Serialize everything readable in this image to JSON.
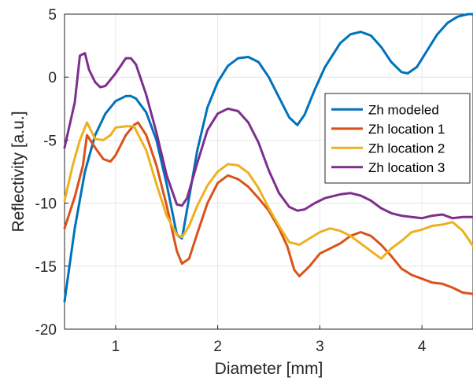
{
  "chart_data": {
    "type": "line",
    "xlabel": "Diameter [mm]",
    "ylabel": "Reflectivity [a.u.]",
    "xlim": [
      0.5,
      4.5
    ],
    "ylim": [
      -20,
      5
    ],
    "xticks": [
      1,
      2,
      3,
      4
    ],
    "yticks": [
      5,
      0,
      -5,
      -10,
      -15,
      -20
    ],
    "grid": true,
    "legend_position": "right",
    "series": [
      {
        "name": "Zh modeled",
        "color": "#0072BD",
        "x": [
          0.5,
          0.6,
          0.7,
          0.8,
          0.9,
          1.0,
          1.1,
          1.15,
          1.2,
          1.3,
          1.4,
          1.5,
          1.6,
          1.65,
          1.7,
          1.8,
          1.9,
          2.0,
          2.1,
          2.2,
          2.3,
          2.4,
          2.5,
          2.6,
          2.7,
          2.78,
          2.85,
          2.95,
          3.05,
          3.2,
          3.3,
          3.4,
          3.5,
          3.6,
          3.7,
          3.8,
          3.86,
          3.95,
          4.05,
          4.15,
          4.25,
          4.35,
          4.45,
          4.5
        ],
        "y": [
          -17.8,
          -12.0,
          -7.5,
          -4.6,
          -2.9,
          -1.9,
          -1.5,
          -1.5,
          -1.7,
          -2.8,
          -5.0,
          -8.5,
          -12.5,
          -12.8,
          -10.5,
          -5.8,
          -2.4,
          -0.4,
          0.9,
          1.5,
          1.6,
          1.2,
          0.0,
          -1.6,
          -3.2,
          -3.8,
          -3.0,
          -1.0,
          0.8,
          2.7,
          3.4,
          3.6,
          3.3,
          2.4,
          1.2,
          0.4,
          0.3,
          0.8,
          2.1,
          3.4,
          4.3,
          4.8,
          5.0,
          5.0
        ]
      },
      {
        "name": "Zh location 1",
        "color": "#D95319",
        "x": [
          0.5,
          0.6,
          0.68,
          0.72,
          0.8,
          0.88,
          0.95,
          1.0,
          1.1,
          1.18,
          1.22,
          1.3,
          1.4,
          1.5,
          1.6,
          1.65,
          1.72,
          1.8,
          1.9,
          2.0,
          2.1,
          2.2,
          2.3,
          2.4,
          2.5,
          2.6,
          2.68,
          2.75,
          2.8,
          2.9,
          3.0,
          3.1,
          3.2,
          3.3,
          3.4,
          3.5,
          3.6,
          3.7,
          3.8,
          3.9,
          4.0,
          4.1,
          4.2,
          4.3,
          4.4,
          4.5
        ],
        "y": [
          -12.0,
          -9.5,
          -7.0,
          -4.6,
          -5.6,
          -6.5,
          -6.7,
          -6.2,
          -4.6,
          -3.8,
          -3.6,
          -4.6,
          -7.0,
          -10.2,
          -13.8,
          -14.8,
          -14.4,
          -12.4,
          -10.0,
          -8.4,
          -7.8,
          -8.1,
          -8.7,
          -9.6,
          -10.6,
          -12.0,
          -13.4,
          -15.3,
          -15.8,
          -15.0,
          -14.0,
          -13.6,
          -13.2,
          -12.6,
          -12.3,
          -12.6,
          -13.3,
          -14.2,
          -15.2,
          -15.7,
          -16.0,
          -16.3,
          -16.4,
          -16.7,
          -17.1,
          -17.2
        ]
      },
      {
        "name": "Zh location 2",
        "color": "#EDB120",
        "x": [
          0.5,
          0.58,
          0.65,
          0.72,
          0.8,
          0.88,
          0.95,
          1.0,
          1.1,
          1.18,
          1.3,
          1.4,
          1.5,
          1.6,
          1.65,
          1.72,
          1.8,
          1.9,
          2.0,
          2.1,
          2.2,
          2.3,
          2.4,
          2.5,
          2.6,
          2.7,
          2.8,
          2.9,
          3.0,
          3.1,
          3.2,
          3.3,
          3.4,
          3.5,
          3.6,
          3.7,
          3.8,
          3.9,
          4.0,
          4.1,
          4.2,
          4.3,
          4.4,
          4.5
        ],
        "y": [
          -9.8,
          -7.0,
          -5.0,
          -3.6,
          -4.9,
          -5.0,
          -4.6,
          -4.0,
          -3.9,
          -3.9,
          -5.8,
          -8.5,
          -11.0,
          -12.5,
          -12.7,
          -11.8,
          -10.2,
          -8.6,
          -7.5,
          -6.9,
          -7.0,
          -7.6,
          -8.8,
          -10.4,
          -11.8,
          -13.1,
          -13.3,
          -12.8,
          -12.3,
          -12.0,
          -12.2,
          -12.6,
          -13.2,
          -13.8,
          -14.4,
          -13.6,
          -13.0,
          -12.3,
          -12.1,
          -11.8,
          -11.7,
          -11.5,
          -12.2,
          -13.4
        ]
      },
      {
        "name": "Zh location 3",
        "color": "#7E2F8E",
        "x": [
          0.5,
          0.6,
          0.65,
          0.7,
          0.74,
          0.8,
          0.85,
          0.9,
          0.95,
          1.0,
          1.1,
          1.15,
          1.2,
          1.3,
          1.4,
          1.5,
          1.6,
          1.65,
          1.7,
          1.8,
          1.9,
          2.0,
          2.1,
          2.2,
          2.3,
          2.4,
          2.5,
          2.6,
          2.7,
          2.78,
          2.85,
          2.95,
          3.05,
          3.2,
          3.3,
          3.4,
          3.5,
          3.6,
          3.7,
          3.8,
          3.9,
          4.0,
          4.1,
          4.2,
          4.3,
          4.4,
          4.5
        ],
        "y": [
          -5.6,
          -2.0,
          1.7,
          1.9,
          0.6,
          -0.4,
          -0.8,
          -0.7,
          -0.2,
          0.3,
          1.5,
          1.5,
          1.0,
          -1.4,
          -4.4,
          -7.8,
          -10.1,
          -10.2,
          -9.6,
          -6.8,
          -4.2,
          -2.9,
          -2.5,
          -2.7,
          -3.6,
          -5.2,
          -7.4,
          -9.2,
          -10.3,
          -10.6,
          -10.5,
          -10.0,
          -9.6,
          -9.3,
          -9.2,
          -9.4,
          -9.8,
          -10.4,
          -10.8,
          -11.0,
          -11.1,
          -11.2,
          -11.0,
          -10.9,
          -11.2,
          -11.1,
          -11.1
        ]
      }
    ]
  }
}
